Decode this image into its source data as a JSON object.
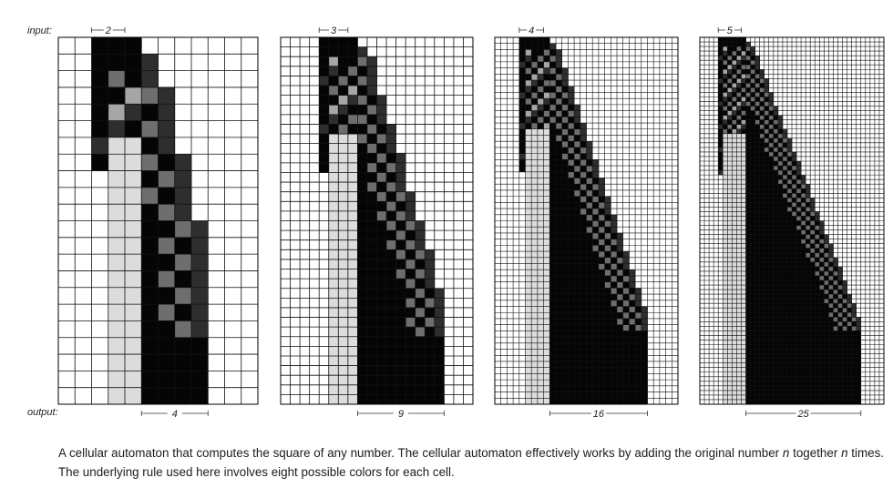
{
  "labels": {
    "input": "input:",
    "output": "output:"
  },
  "panels": [
    {
      "n": 2,
      "result": 4
    },
    {
      "n": 3,
      "result": 9
    },
    {
      "n": 4,
      "result": 16
    },
    {
      "n": 5,
      "result": 25
    }
  ],
  "caption": {
    "part1": "A cellular automaton that computes the square of any number. The cellular automaton effectively works by adding the original number ",
    "var1": "n",
    "part2": " together ",
    "var2": "n",
    "part3": " times. The underlying rule used here involves eight possible colors for each cell."
  },
  "colors": {
    "black": "#050505",
    "dark": "#2e2e2e",
    "mid": "#6e6e6e",
    "light": "#a6a6a6",
    "pale": "#dcdcdc",
    "white": "#ffffff",
    "grid": "#111111"
  }
}
